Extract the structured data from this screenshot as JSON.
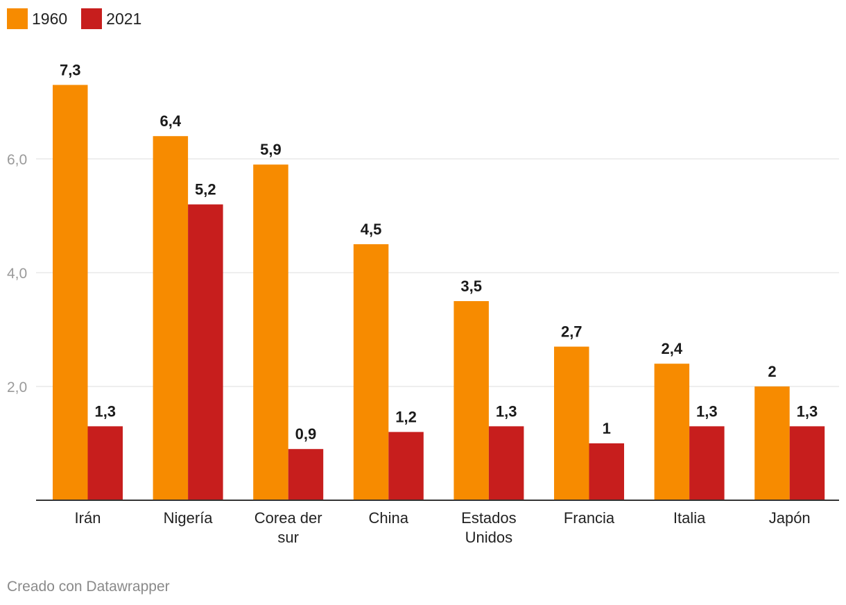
{
  "chart_data": {
    "type": "bar",
    "title": "",
    "xlabel": "",
    "ylabel": "",
    "ylim": [
      0,
      7.3
    ],
    "yticks": [
      2.0,
      4.0,
      6.0
    ],
    "ytick_labels": [
      "2,0",
      "4,0",
      "6,0"
    ],
    "grid": true,
    "legend_position": "top-left",
    "categories": [
      "Irán",
      "Nigería",
      "Corea der sur",
      "China",
      "Estados Unidos",
      "Francia",
      "Italia",
      "Japón"
    ],
    "category_lines": [
      [
        "Irán"
      ],
      [
        "Nigería"
      ],
      [
        "Corea der",
        "sur"
      ],
      [
        "China"
      ],
      [
        "Estados",
        "Unidos"
      ],
      [
        "Francia"
      ],
      [
        "Italia"
      ],
      [
        "Japón"
      ]
    ],
    "series": [
      {
        "name": "1960",
        "color": "#f78b00",
        "values": [
          7.3,
          6.4,
          5.9,
          4.5,
          3.5,
          2.7,
          2.4,
          2
        ],
        "labels": [
          "7,3",
          "6,4",
          "5,9",
          "4,5",
          "3,5",
          "2,7",
          "2,4",
          "2"
        ]
      },
      {
        "name": "2021",
        "color": "#c71e1d",
        "values": [
          1.3,
          5.2,
          0.9,
          1.2,
          1.3,
          1,
          1.3,
          1.3
        ],
        "labels": [
          "1,3",
          "5,2",
          "0,9",
          "1,2",
          "1,3",
          "1",
          "1,3",
          "1,3"
        ]
      }
    ]
  },
  "legend": {
    "items": [
      {
        "label": "1960",
        "color": "#f78b00"
      },
      {
        "label": "2021",
        "color": "#c71e1d"
      }
    ]
  },
  "footer": {
    "text": "Creado con Datawrapper"
  }
}
